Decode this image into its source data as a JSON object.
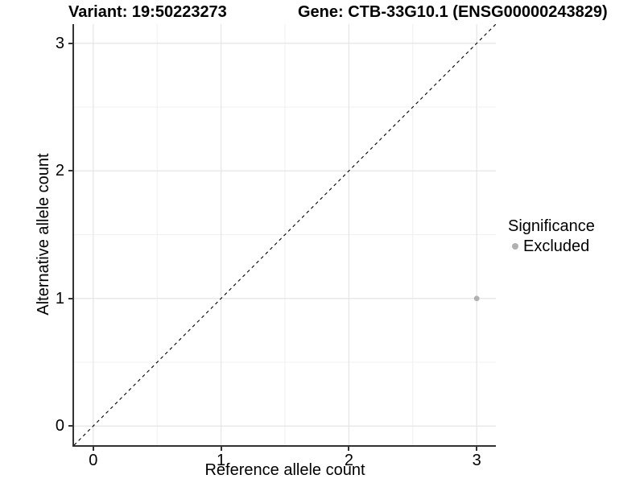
{
  "header": {
    "variant_title": "Variant: 19:50223273",
    "gene_title": "Gene: CTB-33G10.1 (ENSG00000243829)"
  },
  "chart_data": {
    "type": "scatter",
    "xlabel": "Reference allele count",
    "ylabel": "Alternative allele count",
    "xlim": [
      -0.15,
      3.15
    ],
    "ylim": [
      -0.15,
      3.15
    ],
    "xticks": [
      0,
      1,
      2,
      3
    ],
    "yticks": [
      0,
      1,
      2,
      3
    ],
    "minor_ticks": [
      0.5,
      1.5,
      2.5
    ],
    "grid": true,
    "points": [
      {
        "x": 3,
        "y": 1,
        "series": "Excluded"
      }
    ],
    "reference_line": {
      "style": "dashed",
      "slope": 1,
      "intercept": 0,
      "description": "identity line y = x"
    },
    "legend": {
      "title": "Significance",
      "position": "right",
      "items": [
        {
          "label": "Excluded",
          "color": "#b0b0b0"
        }
      ]
    },
    "colors": {
      "point": "#b0b0b0",
      "axis": "#333333",
      "grid_major": "#e5e5e5",
      "grid_minor": "#f0f0f0",
      "line": "#000000"
    },
    "point_radius": 3.4
  }
}
